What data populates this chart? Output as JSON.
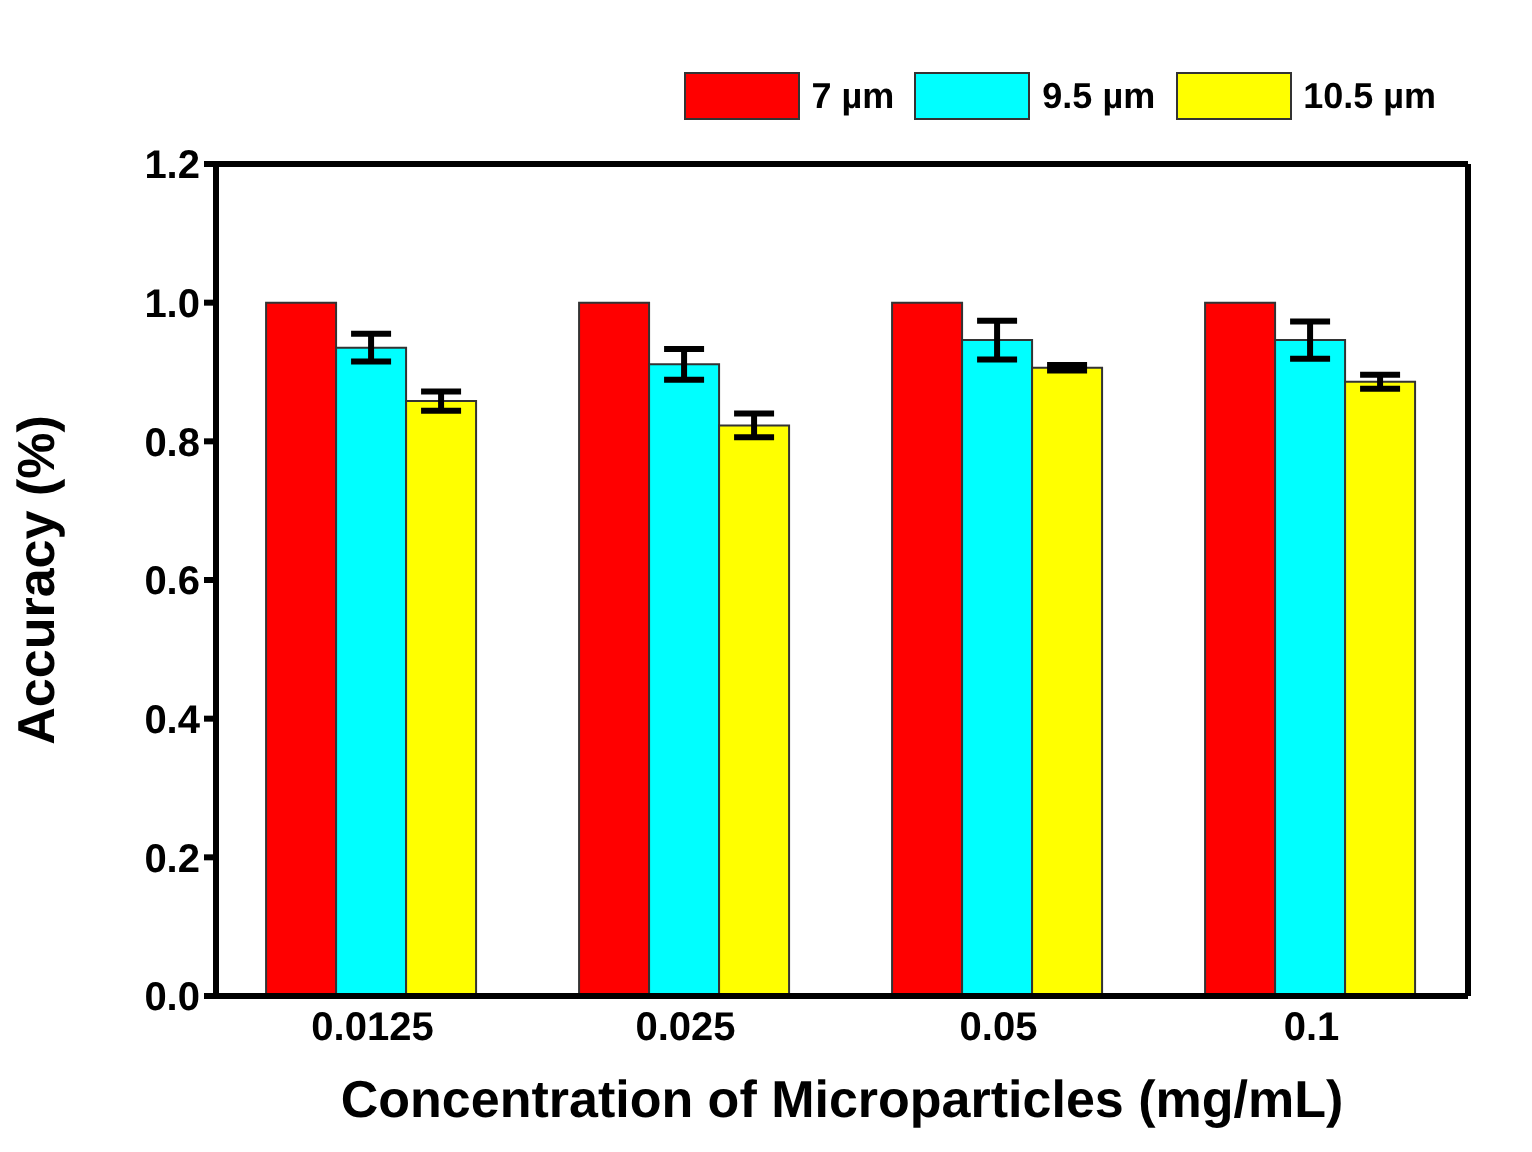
{
  "chart_data": {
    "type": "bar",
    "xlabel": "Concentration of Microparticles (mg/mL)",
    "ylabel": "Accuracy (%)",
    "categories": [
      "0.0125",
      "0.025",
      "0.05",
      "0.1"
    ],
    "series": [
      {
        "name": "7 µm",
        "color": "#ff0000",
        "values": [
          1.0,
          1.0,
          1.0,
          1.0
        ]
      },
      {
        "name": "9.5 µm",
        "color": "#00ffff",
        "values": [
          0.935,
          0.911,
          0.946,
          0.946
        ],
        "errors": [
          0.02,
          0.022,
          0.028,
          0.027
        ]
      },
      {
        "name": "10.5 µm",
        "color": "#ffff00",
        "values": [
          0.858,
          0.823,
          0.906,
          0.886
        ],
        "errors": [
          0.014,
          0.017,
          0.004,
          0.01
        ]
      }
    ],
    "ylim": [
      0,
      1.2
    ],
    "yticks": [
      {
        "value": 0,
        "label": "0.0"
      },
      {
        "value": 0.2,
        "label": "0.2"
      },
      {
        "value": 0.4,
        "label": "0.4"
      },
      {
        "value": 0.6,
        "label": "0.6"
      },
      {
        "value": 0.8,
        "label": "0.8"
      },
      {
        "value": 1,
        "label": "1.0"
      },
      {
        "value": 1.2,
        "label": "1.2"
      }
    ],
    "legend": "top right"
  }
}
